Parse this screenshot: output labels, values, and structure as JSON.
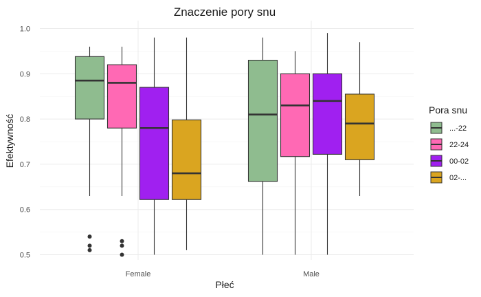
{
  "chart_data": {
    "type": "boxplot",
    "title": "Znaczenie pory snu",
    "xlabel": "Płeć",
    "ylabel": "Efektywność",
    "ylim": [
      0.49,
      1.015
    ],
    "yticks": [
      0.5,
      0.6,
      0.7,
      0.8,
      0.9,
      1.0
    ],
    "ytick_labels": [
      "0.5",
      "0.6",
      "0.7",
      "0.8",
      "0.9",
      "1.0"
    ],
    "grid": true,
    "legend": {
      "title": "Pora snu",
      "position": "right"
    },
    "categories": [
      "Female",
      "Male"
    ],
    "series": [
      {
        "name": "...-22",
        "color": "#8FBC8F",
        "boxes": [
          {
            "category": "Female",
            "min": 0.63,
            "q1": 0.8,
            "median": 0.885,
            "q3": 0.938,
            "max": 0.96,
            "outliers": [
              0.54,
              0.52,
              0.51
            ]
          },
          {
            "category": "Male",
            "min": 0.5,
            "q1": 0.662,
            "median": 0.81,
            "q3": 0.93,
            "max": 0.98,
            "outliers": []
          }
        ]
      },
      {
        "name": "22-24",
        "color": "#FF69B4",
        "boxes": [
          {
            "category": "Female",
            "min": 0.63,
            "q1": 0.78,
            "median": 0.88,
            "q3": 0.92,
            "max": 0.96,
            "outliers": [
              0.53,
              0.52,
              0.5
            ]
          },
          {
            "category": "Male",
            "min": 0.5,
            "q1": 0.717,
            "median": 0.83,
            "q3": 0.9,
            "max": 0.95,
            "outliers": []
          }
        ]
      },
      {
        "name": "00-02",
        "color": "#A020F0",
        "boxes": [
          {
            "category": "Female",
            "min": 0.5,
            "q1": 0.622,
            "median": 0.78,
            "q3": 0.87,
            "max": 0.98,
            "outliers": []
          },
          {
            "category": "Male",
            "min": 0.5,
            "q1": 0.722,
            "median": 0.84,
            "q3": 0.9,
            "max": 0.99,
            "outliers": []
          }
        ]
      },
      {
        "name": "02-...",
        "color": "#DAA520",
        "boxes": [
          {
            "category": "Female",
            "min": 0.51,
            "q1": 0.622,
            "median": 0.68,
            "q3": 0.798,
            "max": 0.98,
            "outliers": []
          },
          {
            "category": "Male",
            "min": 0.63,
            "q1": 0.71,
            "median": 0.79,
            "q3": 0.855,
            "max": 0.97,
            "outliers": []
          }
        ]
      }
    ]
  }
}
